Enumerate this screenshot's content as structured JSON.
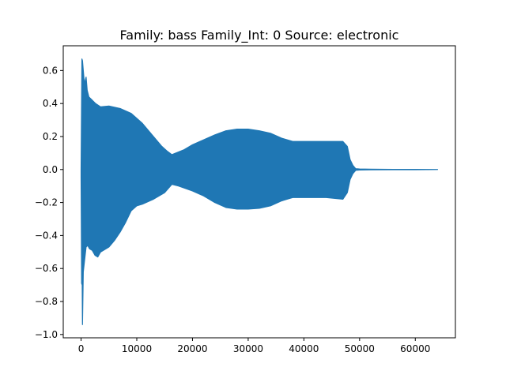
{
  "chart_data": {
    "type": "line",
    "title": "Family: bass Family_Int: 0 Source: electronic",
    "xlabel": "",
    "ylabel": "",
    "xlim": [
      -3200,
      67200
    ],
    "ylim": [
      -1.02,
      0.75
    ],
    "x_ticks": [
      0,
      10000,
      20000,
      30000,
      40000,
      50000,
      60000
    ],
    "x_tick_labels": [
      "0",
      "10000",
      "20000",
      "30000",
      "40000",
      "50000",
      "60000"
    ],
    "y_ticks": [
      0.6,
      0.4,
      0.2,
      0.0,
      -0.2,
      -0.4,
      -0.6,
      -0.8,
      -1.0
    ],
    "y_tick_labels": [
      "0.6",
      "0.4",
      "0.2",
      "0.0",
      "−0.2",
      "−0.4",
      "−0.6",
      "−0.8",
      "−1.0"
    ],
    "grid": false,
    "legend": "none",
    "series": [
      {
        "color": "#1f77b4",
        "envelope_upper": {
          "x": [
            0,
            150,
            250,
            350,
            600,
            900,
            1100,
            1400,
            2000,
            2600,
            3500,
            5000,
            7000,
            9000,
            11000,
            13000,
            14500,
            15500,
            16300,
            17000,
            18500,
            20000,
            22000,
            24000,
            26000,
            28000,
            30000,
            32000,
            34000,
            36000,
            37500,
            38000,
            40000,
            44000,
            47000,
            47800,
            48300,
            48800,
            49300,
            50000,
            52000,
            56000,
            60000,
            64000
          ],
          "y": [
            0.0,
            0.67,
            0.66,
            0.62,
            0.52,
            0.56,
            0.48,
            0.44,
            0.42,
            0.4,
            0.38,
            0.385,
            0.37,
            0.34,
            0.28,
            0.2,
            0.14,
            0.11,
            0.09,
            0.1,
            0.12,
            0.15,
            0.18,
            0.21,
            0.235,
            0.245,
            0.245,
            0.235,
            0.22,
            0.19,
            0.175,
            0.17,
            0.17,
            0.17,
            0.17,
            0.14,
            0.06,
            0.025,
            0.005,
            0.003,
            0.002,
            0.001,
            0.001,
            0.0
          ]
        },
        "envelope_lower": {
          "x": [
            0,
            100,
            200,
            250,
            400,
            600,
            900,
            1200,
            1500,
            2000,
            2500,
            3000,
            3500,
            4000,
            5000,
            6000,
            7000,
            8000,
            9000,
            10000,
            11000,
            13000,
            15000,
            16300,
            17500,
            20000,
            22000,
            24000,
            26000,
            28000,
            30000,
            32000,
            34000,
            36000,
            37500,
            38000,
            40000,
            44000,
            47000,
            47800,
            48300,
            48800,
            49300,
            50000,
            52000,
            56000,
            60000,
            64000
          ],
          "y": [
            -0.05,
            -0.69,
            -0.7,
            -0.94,
            -0.62,
            -0.56,
            -0.47,
            -0.46,
            -0.48,
            -0.49,
            -0.52,
            -0.53,
            -0.5,
            -0.49,
            -0.47,
            -0.43,
            -0.38,
            -0.32,
            -0.25,
            -0.22,
            -0.21,
            -0.18,
            -0.14,
            -0.09,
            -0.1,
            -0.13,
            -0.16,
            -0.2,
            -0.23,
            -0.24,
            -0.24,
            -0.235,
            -0.22,
            -0.19,
            -0.175,
            -0.17,
            -0.17,
            -0.17,
            -0.18,
            -0.14,
            -0.06,
            -0.025,
            -0.005,
            -0.003,
            -0.002,
            -0.001,
            -0.001,
            0.0
          ]
        }
      }
    ]
  }
}
